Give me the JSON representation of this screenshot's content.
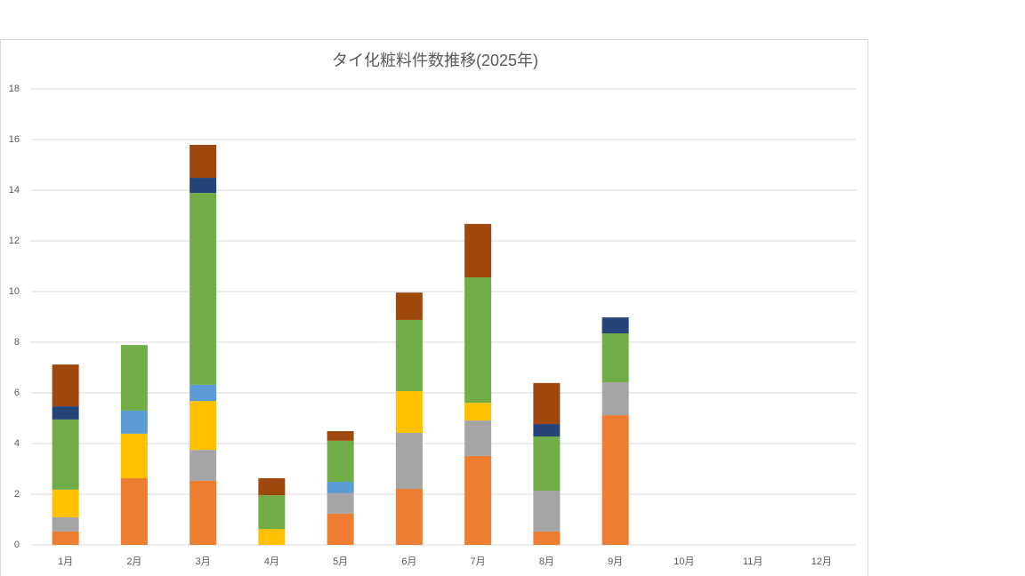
{
  "chart_data": {
    "type": "stacked-bar",
    "title": "タイ化粧料件数推移(2025年)",
    "categories": [
      "1月",
      "2月",
      "3月",
      "4月",
      "5月",
      "6月",
      "7月",
      "8月",
      "9月",
      "10月",
      "11月",
      "12月"
    ],
    "series": [
      {
        "color": "#ED7D31",
        "values": [
          0.53,
          2.63,
          2.53,
          0,
          1.23,
          2.21,
          3.51,
          0.53,
          5.12,
          null,
          null,
          null
        ]
      },
      {
        "color": "#A5A5A5",
        "values": [
          0.56,
          0,
          1.22,
          0,
          0.81,
          2.21,
          1.4,
          1.61,
          1.3,
          null,
          null,
          null
        ]
      },
      {
        "color": "#FFC000",
        "values": [
          1.09,
          1.76,
          1.93,
          0.63,
          0,
          1.65,
          0.7,
          0,
          0,
          null,
          null,
          null
        ]
      },
      {
        "color": "#5B9BD5",
        "values": [
          0,
          0.91,
          0.64,
          0,
          0.45,
          0,
          0,
          0,
          0,
          null,
          null,
          null
        ]
      },
      {
        "color": "#70AD47",
        "values": [
          2.77,
          2.59,
          7.57,
          1.33,
          1.62,
          2.81,
          4.95,
          2.14,
          1.93,
          null,
          null,
          null
        ]
      },
      {
        "color": "#264478",
        "values": [
          0.52,
          0,
          0.6,
          0,
          0,
          0,
          0,
          0.49,
          0.63,
          null,
          null,
          null
        ]
      },
      {
        "color": "#9E480E",
        "values": [
          1.65,
          0,
          1.3,
          0.67,
          0.38,
          1.08,
          2.11,
          1.62,
          0,
          null,
          null,
          null
        ]
      }
    ],
    "ylim": [
      0,
      18
    ],
    "yticks": [
      0,
      2,
      4,
      6,
      8,
      10,
      12,
      14,
      16,
      18
    ],
    "grid": true
  }
}
